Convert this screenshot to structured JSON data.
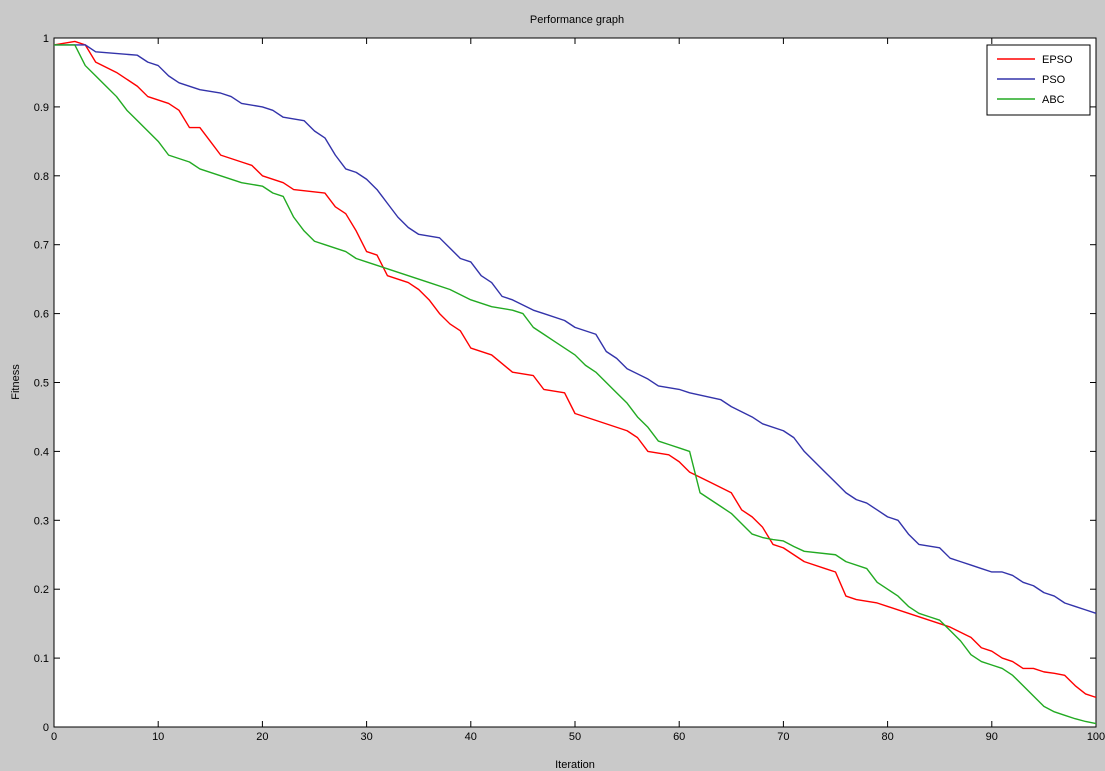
{
  "chart_data": {
    "type": "line",
    "title": "Performance graph",
    "xlabel": "Iteration",
    "ylabel": "Fitness",
    "xlim": [
      0,
      100
    ],
    "ylim": [
      0,
      1
    ],
    "xticks": [
      0,
      10,
      20,
      30,
      40,
      50,
      60,
      70,
      80,
      90,
      100
    ],
    "yticks": [
      0,
      0.1,
      0.2,
      0.3,
      0.4,
      0.5,
      0.6,
      0.7,
      0.8,
      0.9,
      1
    ],
    "grid": false,
    "legend_position": "top-right",
    "series": [
      {
        "name": "EPSO",
        "color": "#ff0000",
        "points": [
          [
            0,
            0.99
          ],
          [
            2,
            0.995
          ],
          [
            3,
            0.99
          ],
          [
            4,
            0.965
          ],
          [
            6,
            0.95
          ],
          [
            8,
            0.93
          ],
          [
            9,
            0.915
          ],
          [
            11,
            0.905
          ],
          [
            12,
            0.895
          ],
          [
            13,
            0.87
          ],
          [
            14,
            0.87
          ],
          [
            15,
            0.85
          ],
          [
            16,
            0.83
          ],
          [
            18,
            0.82
          ],
          [
            19,
            0.815
          ],
          [
            20,
            0.8
          ],
          [
            22,
            0.79
          ],
          [
            23,
            0.78
          ],
          [
            26,
            0.775
          ],
          [
            27,
            0.755
          ],
          [
            28,
            0.745
          ],
          [
            29,
            0.72
          ],
          [
            30,
            0.69
          ],
          [
            31,
            0.685
          ],
          [
            32,
            0.655
          ],
          [
            34,
            0.645
          ],
          [
            35,
            0.635
          ],
          [
            36,
            0.62
          ],
          [
            37,
            0.6
          ],
          [
            38,
            0.585
          ],
          [
            39,
            0.575
          ],
          [
            40,
            0.55
          ],
          [
            42,
            0.54
          ],
          [
            44,
            0.515
          ],
          [
            46,
            0.51
          ],
          [
            47,
            0.49
          ],
          [
            49,
            0.485
          ],
          [
            50,
            0.455
          ],
          [
            52,
            0.445
          ],
          [
            55,
            0.43
          ],
          [
            56,
            0.42
          ],
          [
            57,
            0.4
          ],
          [
            59,
            0.395
          ],
          [
            60,
            0.385
          ],
          [
            61,
            0.37
          ],
          [
            63,
            0.355
          ],
          [
            65,
            0.34
          ],
          [
            66,
            0.315
          ],
          [
            67,
            0.305
          ],
          [
            68,
            0.29
          ],
          [
            69,
            0.265
          ],
          [
            70,
            0.26
          ],
          [
            72,
            0.24
          ],
          [
            74,
            0.23
          ],
          [
            75,
            0.225
          ],
          [
            76,
            0.19
          ],
          [
            77,
            0.185
          ],
          [
            79,
            0.18
          ],
          [
            80,
            0.175
          ],
          [
            82,
            0.165
          ],
          [
            84,
            0.155
          ],
          [
            86,
            0.145
          ],
          [
            88,
            0.13
          ],
          [
            89,
            0.115
          ],
          [
            90,
            0.11
          ],
          [
            91,
            0.1
          ],
          [
            92,
            0.095
          ],
          [
            93,
            0.085
          ],
          [
            94,
            0.085
          ],
          [
            95,
            0.08
          ],
          [
            96,
            0.078
          ],
          [
            97,
            0.075
          ],
          [
            98,
            0.06
          ],
          [
            99,
            0.048
          ],
          [
            100,
            0.043
          ]
        ]
      },
      {
        "name": "PSO",
        "color": "#3333aa",
        "points": [
          [
            0,
            0.99
          ],
          [
            3,
            0.99
          ],
          [
            4,
            0.98
          ],
          [
            8,
            0.975
          ],
          [
            9,
            0.965
          ],
          [
            10,
            0.96
          ],
          [
            11,
            0.945
          ],
          [
            12,
            0.935
          ],
          [
            14,
            0.925
          ],
          [
            16,
            0.92
          ],
          [
            17,
            0.915
          ],
          [
            18,
            0.905
          ],
          [
            20,
            0.9
          ],
          [
            21,
            0.895
          ],
          [
            22,
            0.885
          ],
          [
            24,
            0.88
          ],
          [
            25,
            0.865
          ],
          [
            26,
            0.855
          ],
          [
            27,
            0.83
          ],
          [
            28,
            0.81
          ],
          [
            29,
            0.805
          ],
          [
            30,
            0.795
          ],
          [
            31,
            0.78
          ],
          [
            32,
            0.76
          ],
          [
            33,
            0.74
          ],
          [
            34,
            0.725
          ],
          [
            35,
            0.715
          ],
          [
            37,
            0.71
          ],
          [
            38,
            0.695
          ],
          [
            39,
            0.68
          ],
          [
            40,
            0.675
          ],
          [
            41,
            0.655
          ],
          [
            42,
            0.645
          ],
          [
            43,
            0.625
          ],
          [
            44,
            0.62
          ],
          [
            46,
            0.605
          ],
          [
            47,
            0.6
          ],
          [
            49,
            0.59
          ],
          [
            50,
            0.58
          ],
          [
            52,
            0.57
          ],
          [
            53,
            0.545
          ],
          [
            54,
            0.535
          ],
          [
            55,
            0.52
          ],
          [
            57,
            0.505
          ],
          [
            58,
            0.495
          ],
          [
            60,
            0.49
          ],
          [
            61,
            0.485
          ],
          [
            64,
            0.475
          ],
          [
            65,
            0.465
          ],
          [
            67,
            0.45
          ],
          [
            68,
            0.44
          ],
          [
            70,
            0.43
          ],
          [
            71,
            0.42
          ],
          [
            72,
            0.4
          ],
          [
            73,
            0.385
          ],
          [
            74,
            0.37
          ],
          [
            75,
            0.355
          ],
          [
            76,
            0.34
          ],
          [
            77,
            0.33
          ],
          [
            78,
            0.325
          ],
          [
            79,
            0.315
          ],
          [
            80,
            0.305
          ],
          [
            81,
            0.3
          ],
          [
            82,
            0.28
          ],
          [
            83,
            0.265
          ],
          [
            85,
            0.26
          ],
          [
            86,
            0.245
          ],
          [
            87,
            0.24
          ],
          [
            88,
            0.235
          ],
          [
            89,
            0.23
          ],
          [
            90,
            0.225
          ],
          [
            91,
            0.225
          ],
          [
            92,
            0.22
          ],
          [
            93,
            0.21
          ],
          [
            94,
            0.205
          ],
          [
            95,
            0.195
          ],
          [
            96,
            0.19
          ],
          [
            97,
            0.18
          ],
          [
            98,
            0.175
          ],
          [
            99,
            0.17
          ],
          [
            100,
            0.165
          ]
        ]
      },
      {
        "name": "ABC",
        "color": "#22aa22",
        "points": [
          [
            0,
            0.99
          ],
          [
            2,
            0.99
          ],
          [
            3,
            0.96
          ],
          [
            4,
            0.945
          ],
          [
            5,
            0.93
          ],
          [
            6,
            0.915
          ],
          [
            7,
            0.895
          ],
          [
            8,
            0.88
          ],
          [
            9,
            0.865
          ],
          [
            10,
            0.85
          ],
          [
            11,
            0.83
          ],
          [
            13,
            0.82
          ],
          [
            14,
            0.81
          ],
          [
            16,
            0.8
          ],
          [
            18,
            0.79
          ],
          [
            20,
            0.785
          ],
          [
            21,
            0.775
          ],
          [
            22,
            0.77
          ],
          [
            23,
            0.74
          ],
          [
            24,
            0.72
          ],
          [
            25,
            0.705
          ],
          [
            26,
            0.7
          ],
          [
            28,
            0.69
          ],
          [
            29,
            0.68
          ],
          [
            30,
            0.675
          ],
          [
            32,
            0.665
          ],
          [
            34,
            0.655
          ],
          [
            36,
            0.645
          ],
          [
            38,
            0.635
          ],
          [
            40,
            0.62
          ],
          [
            42,
            0.61
          ],
          [
            44,
            0.605
          ],
          [
            45,
            0.6
          ],
          [
            46,
            0.58
          ],
          [
            47,
            0.57
          ],
          [
            48,
            0.56
          ],
          [
            49,
            0.55
          ],
          [
            50,
            0.54
          ],
          [
            51,
            0.525
          ],
          [
            52,
            0.515
          ],
          [
            53,
            0.5
          ],
          [
            54,
            0.485
          ],
          [
            55,
            0.47
          ],
          [
            56,
            0.45
          ],
          [
            57,
            0.435
          ],
          [
            58,
            0.415
          ],
          [
            59,
            0.41
          ],
          [
            60,
            0.405
          ],
          [
            61,
            0.4
          ],
          [
            62,
            0.34
          ],
          [
            63,
            0.33
          ],
          [
            64,
            0.32
          ],
          [
            65,
            0.31
          ],
          [
            66,
            0.295
          ],
          [
            67,
            0.28
          ],
          [
            68,
            0.275
          ],
          [
            69,
            0.272
          ],
          [
            70,
            0.27
          ],
          [
            71,
            0.262
          ],
          [
            72,
            0.255
          ],
          [
            75,
            0.25
          ],
          [
            76,
            0.24
          ],
          [
            78,
            0.23
          ],
          [
            79,
            0.21
          ],
          [
            80,
            0.2
          ],
          [
            81,
            0.19
          ],
          [
            82,
            0.175
          ],
          [
            83,
            0.165
          ],
          [
            84,
            0.16
          ],
          [
            85,
            0.155
          ],
          [
            86,
            0.14
          ],
          [
            87,
            0.125
          ],
          [
            88,
            0.105
          ],
          [
            89,
            0.095
          ],
          [
            90,
            0.09
          ],
          [
            91,
            0.085
          ],
          [
            92,
            0.075
          ],
          [
            93,
            0.06
          ],
          [
            94,
            0.045
          ],
          [
            95,
            0.03
          ],
          [
            96,
            0.022
          ],
          [
            97,
            0.017
          ],
          [
            98,
            0.012
          ],
          [
            99,
            0.008
          ],
          [
            100,
            0.005
          ]
        ]
      }
    ]
  }
}
